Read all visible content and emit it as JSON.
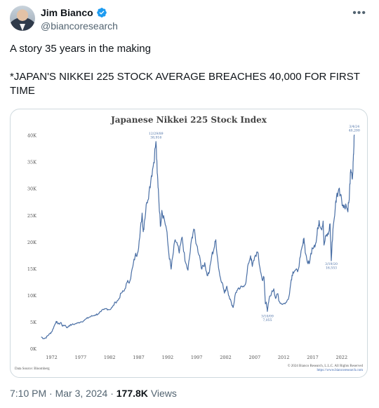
{
  "user": {
    "name": "Jim Bianco",
    "handle": "@biancoresearch",
    "verified_color": "#1d9bf0"
  },
  "tweet": {
    "line1": "A story 35 years in the making",
    "line2": "*JAPAN'S NIKKEI 225 STOCK AVERAGE BREACHES 40,000 FOR FIRST TIME"
  },
  "meta": {
    "time": "7:10 PM",
    "date": "Mar 3, 2024",
    "views": "177.8K",
    "views_label": "Views"
  },
  "chart_data": {
    "type": "line",
    "title": "Japanese Nikkei 225 Stock Index",
    "line_color": "#4a6fa5",
    "ylim": [
      0,
      41000
    ],
    "xlim": [
      1970,
      2024.2
    ],
    "y_ticks": [
      0,
      5000,
      10000,
      15000,
      20000,
      25000,
      30000,
      35000,
      40000
    ],
    "y_tick_labels": [
      "0K",
      "5K",
      "10K",
      "15K",
      "20K",
      "25K",
      "30K",
      "35K",
      "40K"
    ],
    "x_ticks": [
      1972,
      1977,
      1982,
      1987,
      1992,
      1997,
      2002,
      2007,
      2012,
      2017,
      2022
    ],
    "x_tick_labels": [
      "1972",
      "1977",
      "1982",
      "1987",
      "1992",
      "1997",
      "2002",
      "2007",
      "2012",
      "2017",
      "2022"
    ],
    "source": "Data Source: Bloomberg",
    "copyright": "© 2024 Bianco Research, L.L.C. All Rights Reserved",
    "url": "https://www.biancoresearch.com",
    "annotations": [
      {
        "date": "12/29/89",
        "value": "38,916",
        "x": 1989.99,
        "y": 38916
      },
      {
        "date": "3/10/09",
        "value": "7,055",
        "x": 2009.19,
        "y": 7055
      },
      {
        "date": "3/19/20",
        "value": "16,553",
        "x": 2020.21,
        "y": 16553
      },
      {
        "date": "3/4/24",
        "value": "40,200",
        "x": 2024.17,
        "y": 40200
      }
    ],
    "series": [
      {
        "x": [
          1970.2,
          1970.6,
          1971.0,
          1971.3,
          1971.7,
          1972.0,
          1972.4,
          1972.8,
          1973.0,
          1973.3,
          1973.6,
          1973.9,
          1974.3,
          1974.7,
          1975.0,
          1975.5,
          1976.0,
          1976.5,
          1977.0,
          1977.5,
          1978.0,
          1978.5,
          1979.0,
          1979.5,
          1980.0,
          1980.5,
          1981.0,
          1981.5,
          1982.0,
          1982.5,
          1983.0,
          1983.5,
          1984.0,
          1984.5,
          1985.0,
          1985.5,
          1986.0,
          1986.4,
          1986.8,
          1987.2,
          1987.6,
          1987.8,
          1988.0,
          1988.4,
          1988.8,
          1989.2,
          1989.6,
          1989.99,
          1990.2,
          1990.4,
          1990.75,
          1991.0,
          1991.4,
          1991.8,
          1992.2,
          1992.6,
          1992.9,
          1993.3,
          1993.7,
          1994.0,
          1994.5,
          1995.0,
          1995.5,
          1995.8,
          1996.2,
          1996.5,
          1997.0,
          1997.5,
          1997.9,
          1998.4,
          1998.8,
          1999.2,
          1999.6,
          2000.0,
          2000.3,
          2000.7,
          2001.0,
          2001.4,
          2001.8,
          2002.2,
          2002.6,
          2003.0,
          2003.3,
          2003.7,
          2004.0,
          2004.5,
          2005.0,
          2005.5,
          2005.9,
          2006.3,
          2006.6,
          2007.0,
          2007.5,
          2007.9,
          2008.3,
          2008.6,
          2008.85,
          2009.0,
          2009.19,
          2009.5,
          2009.9,
          2010.3,
          2010.6,
          2011.0,
          2011.2,
          2011.6,
          2012.0,
          2012.5,
          2012.9,
          2013.3,
          2013.6,
          2014.0,
          2014.4,
          2014.9,
          2015.3,
          2015.5,
          2015.8,
          2016.2,
          2016.5,
          2016.9,
          2017.3,
          2017.6,
          2017.9,
          2018.1,
          2018.5,
          2018.8,
          2018.95,
          2019.3,
          2019.7,
          2020.0,
          2020.21,
          2020.5,
          2020.9,
          2021.1,
          2021.5,
          2021.9,
          2022.3,
          2022.7,
          2023.0,
          2023.3,
          2023.5,
          2023.8,
          2023.95,
          2024.05,
          2024.17
        ],
        "y": [
          2300,
          2000,
          2100,
          2500,
          2900,
          3200,
          4200,
          5200,
          4900,
          4700,
          5000,
          4300,
          4500,
          4000,
          4400,
          4600,
          4700,
          4900,
          5100,
          5300,
          5700,
          6000,
          6200,
          6400,
          6600,
          7000,
          7400,
          7600,
          7400,
          7900,
          8800,
          9200,
          10500,
          10900,
          12500,
          12800,
          15500,
          17500,
          18000,
          21000,
          25500,
          22000,
          24000,
          27500,
          29500,
          32500,
          35000,
          38916,
          33000,
          30000,
          23000,
          26000,
          24500,
          22500,
          18000,
          15000,
          17500,
          20500,
          19500,
          18000,
          21000,
          16500,
          14800,
          17500,
          21000,
          22500,
          19500,
          17500,
          15000,
          16200,
          13800,
          14500,
          17500,
          18900,
          20500,
          16000,
          13800,
          12500,
          10500,
          11800,
          9900,
          8600,
          7800,
          10500,
          11000,
          11400,
          11800,
          12500,
          16000,
          17500,
          15500,
          17300,
          18200,
          15300,
          13000,
          13500,
          8500,
          8800,
          7055,
          9500,
          10500,
          11300,
          9500,
          10400,
          9000,
          8500,
          8500,
          8800,
          9800,
          13000,
          14500,
          14800,
          14500,
          17400,
          19500,
          20800,
          17800,
          16000,
          16500,
          19000,
          19500,
          20000,
          22800,
          24100,
          22500,
          24000,
          19500,
          21200,
          21500,
          23500,
          16553,
          22500,
          26500,
          28500,
          30000,
          28900,
          26500,
          27200,
          26000,
          28000,
          33000,
          32000,
          33500,
          36500,
          40200
        ]
      }
    ]
  }
}
